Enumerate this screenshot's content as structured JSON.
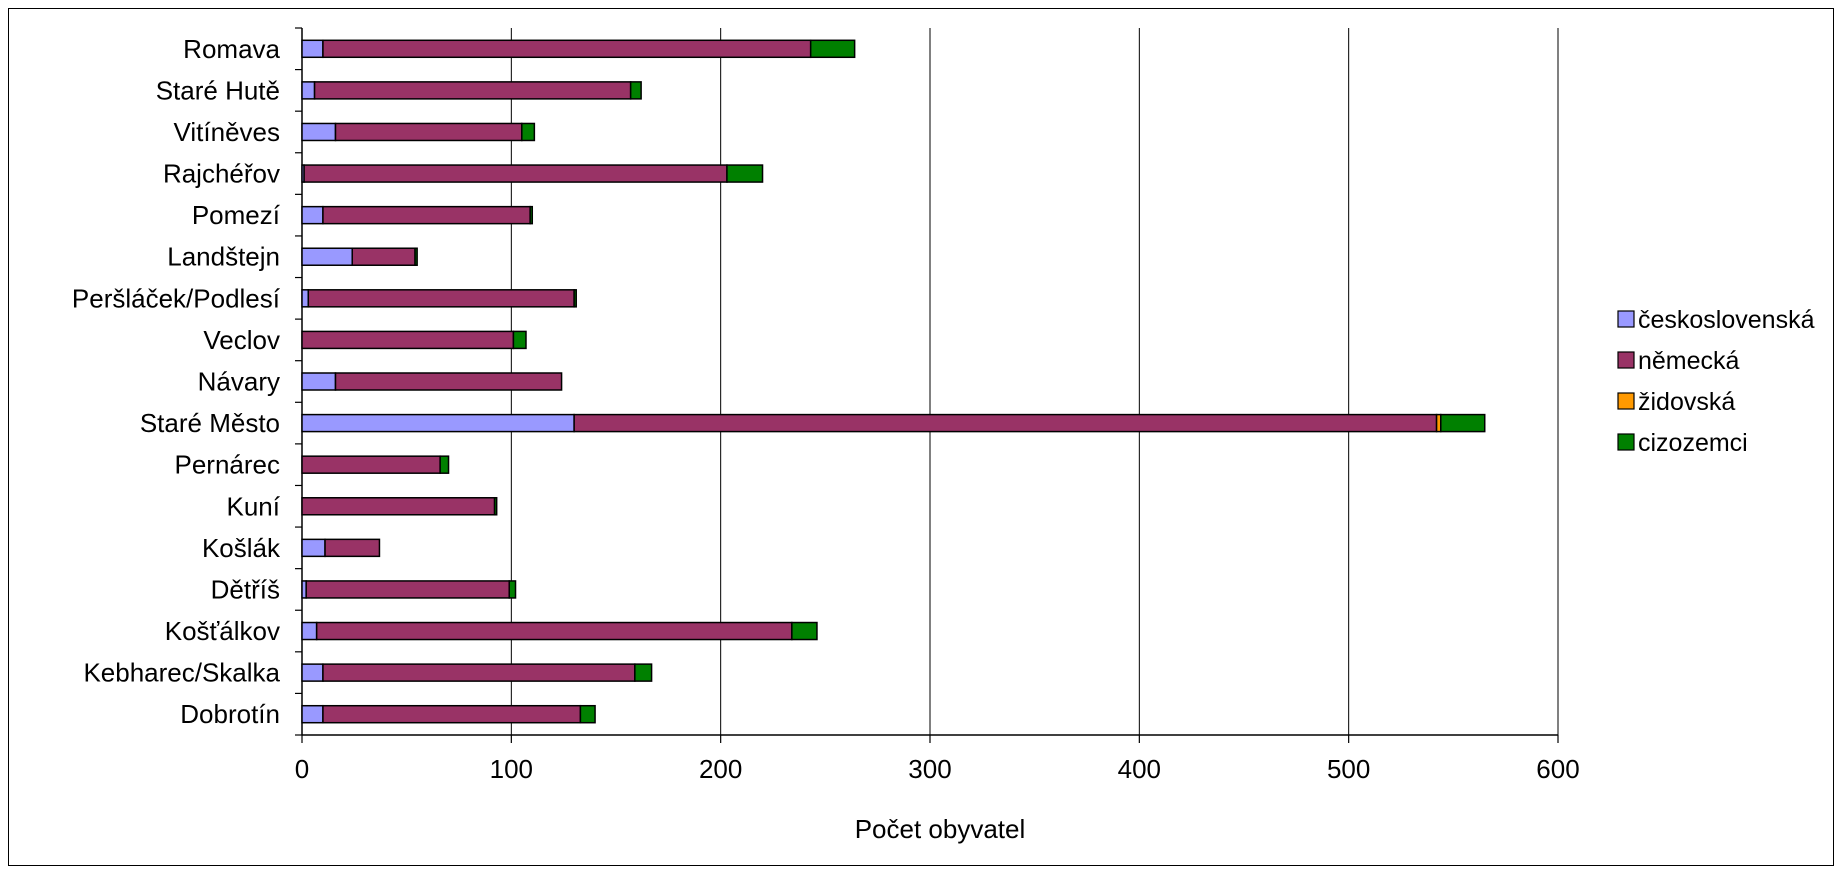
{
  "chart_data": {
    "type": "bar",
    "orientation": "horizontal",
    "stacked": true,
    "title": "",
    "xlabel": "Počet obyvatel",
    "ylabel": "",
    "xlim": [
      0,
      600
    ],
    "xticks": [
      "0",
      "100",
      "200",
      "300",
      "400",
      "500",
      "600"
    ],
    "grid": "vertical major gridlines",
    "legend_position": "right",
    "categories": [
      "Romava",
      "Staré Hutě",
      "Vitíněves",
      "Rajchéřov",
      "Pomezí",
      "Landštejn",
      "Peršláček/Podlesí",
      "Veclov",
      "Návary",
      "Staré Město",
      "Pernárec",
      "Kuní",
      "Košlák",
      "Dětříš",
      "Košťálkov",
      "Kebharec/Skalka",
      "Dobrotín"
    ],
    "series": [
      {
        "name": "československá",
        "color": "#9999ff",
        "values": [
          10,
          6,
          16,
          1,
          10,
          24,
          3,
          0,
          16,
          130,
          0,
          0,
          11,
          2,
          7,
          10,
          10
        ]
      },
      {
        "name": "německá",
        "color": "#993366",
        "values": [
          233,
          151,
          89,
          202,
          99,
          30,
          127,
          101,
          108,
          412,
          66,
          92,
          26,
          97,
          227,
          149,
          123
        ]
      },
      {
        "name": "židovská",
        "color": "#ff9900",
        "values": [
          0,
          0,
          0,
          0,
          0,
          0,
          0,
          0,
          0,
          2,
          0,
          0,
          0,
          0,
          0,
          0,
          0
        ]
      },
      {
        "name": "cizozemci",
        "color": "#008000",
        "values": [
          21,
          5,
          6,
          17,
          1,
          1,
          1,
          6,
          0,
          21,
          4,
          1,
          0,
          3,
          12,
          8,
          7
        ]
      }
    ]
  }
}
